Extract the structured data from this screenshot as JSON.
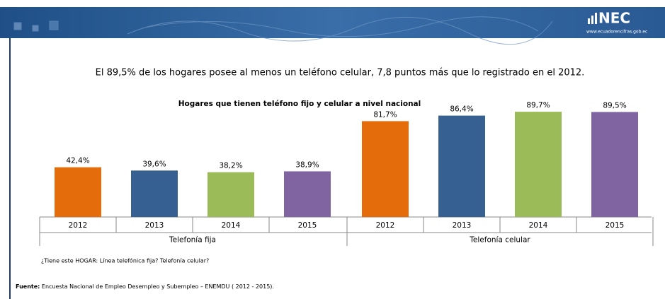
{
  "header": {
    "logo": "NEC",
    "url": "www.ecuadorencifras.gob.ec"
  },
  "chart_data": {
    "type": "bar",
    "subtitle": "El 89,5% de los hogares posee al menos un teléfono celular, 7,8 puntos más que lo registrado en el 2012.",
    "title": "Hogares que tienen teléfono fijo y celular a nivel nacional",
    "groups": [
      {
        "name": "Telefonía fija",
        "categories": [
          "2012",
          "2013",
          "2014",
          "2015"
        ],
        "values": [
          42.4,
          39.6,
          38.2,
          38.9
        ],
        "value_labels": [
          "42,4%",
          "39,6%",
          "38,2%",
          "38,9%"
        ],
        "colors": [
          "#e46c0a",
          "#376092",
          "#9bbb59",
          "#8064a2"
        ]
      },
      {
        "name": "Telefonía celular",
        "categories": [
          "2012",
          "2013",
          "2014",
          "2015"
        ],
        "values": [
          81.7,
          86.4,
          89.7,
          89.5
        ],
        "value_labels": [
          "81,7%",
          "86,4%",
          "89,7%",
          "89,5%"
        ],
        "colors": [
          "#e46c0a",
          "#376092",
          "#9bbb59",
          "#8064a2"
        ]
      }
    ],
    "note": "¿Tiene este HOGAR: Línea telefónica fija? Telefonía celular?",
    "source_label": "Fuente:",
    "source": "Encuesta Nacional de Empleo Desempleo y Subempleo – ENEMDU ( 2012 - 2015)."
  }
}
